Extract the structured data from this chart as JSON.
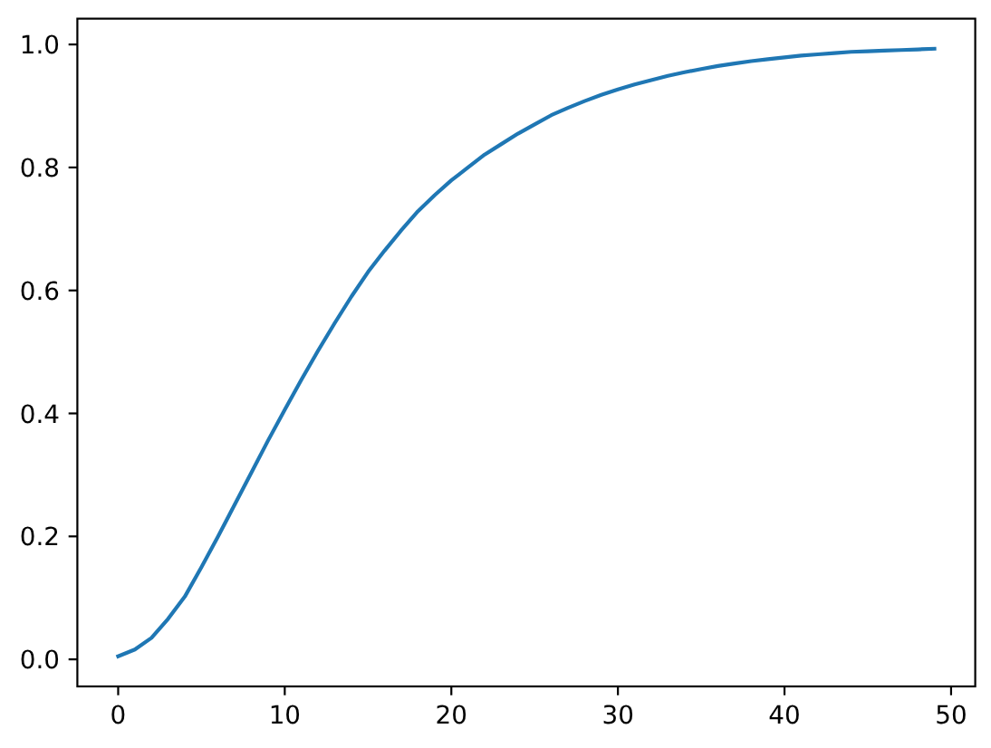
{
  "chart_data": {
    "type": "line",
    "x": [
      0,
      1,
      2,
      3,
      4,
      5,
      6,
      7,
      8,
      9,
      10,
      11,
      12,
      13,
      14,
      15,
      16,
      17,
      18,
      19,
      20,
      21,
      22,
      23,
      24,
      25,
      26,
      27,
      28,
      29,
      30,
      31,
      32,
      33,
      34,
      35,
      36,
      37,
      38,
      39,
      40,
      41,
      42,
      43,
      44,
      45,
      46,
      47,
      48,
      49
    ],
    "series": [
      {
        "color": "#1f77b4",
        "values": [
          0.005,
          0.016,
          0.035,
          0.066,
          0.102,
          0.15,
          0.2,
          0.252,
          0.304,
          0.356,
          0.406,
          0.455,
          0.502,
          0.547,
          0.59,
          0.63,
          0.665,
          0.698,
          0.729,
          0.755,
          0.779,
          0.8,
          0.821,
          0.838,
          0.855,
          0.87,
          0.885,
          0.897,
          0.908,
          0.918,
          0.927,
          0.935,
          0.942,
          0.949,
          0.955,
          0.96,
          0.965,
          0.969,
          0.973,
          0.976,
          0.979,
          0.982,
          0.984,
          0.986,
          0.988,
          0.989,
          0.99,
          0.991,
          0.992,
          0.993
        ]
      }
    ],
    "xlim": [
      -2.45,
      51.45
    ],
    "ylim": [
      -0.044,
      1.042
    ],
    "xticks": [
      0,
      10,
      20,
      30,
      40,
      50
    ],
    "yticks": [
      {
        "value": 0,
        "label": "0.0"
      },
      0.2,
      0.4,
      0.6,
      0.8,
      {
        "value": 1,
        "label": "1.0"
      }
    ]
  }
}
